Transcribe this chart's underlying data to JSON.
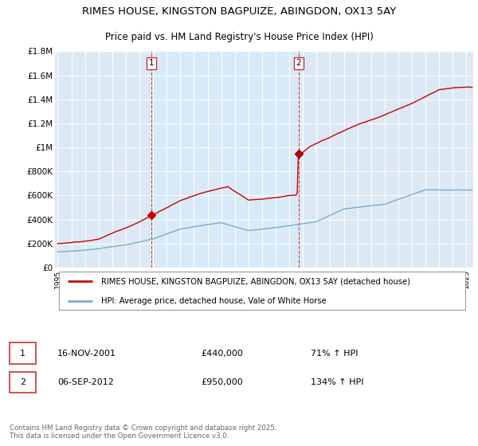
{
  "title1": "RIMES HOUSE, KINGSTON BAGPUIZE, ABINGDON, OX13 5AY",
  "title2": "Price paid vs. HM Land Registry's House Price Index (HPI)",
  "background_color": "#dce9f5",
  "plot_bg_color": "#dce9f5",
  "shaded_color": "#ccddf0",
  "red_color": "#cc0000",
  "blue_color": "#7aabcc",
  "vline_color": "#cc3333",
  "sale1_year": 2001.88,
  "sale1_price": 440000,
  "sale2_year": 2012.68,
  "sale2_price": 950000,
  "ylim": [
    0,
    1800000
  ],
  "xlim_start": 1994.8,
  "xlim_end": 2025.5,
  "legend_label_red": "RIMES HOUSE, KINGSTON BAGPUIZE, ABINGDON, OX13 5AY (detached house)",
  "legend_label_blue": "HPI: Average price, detached house, Vale of White Horse",
  "annotation1_date": "16-NOV-2001",
  "annotation1_price": "£440,000",
  "annotation1_hpi": "71% ↑ HPI",
  "annotation2_date": "06-SEP-2012",
  "annotation2_price": "£950,000",
  "annotation2_hpi": "134% ↑ HPI",
  "footer": "Contains HM Land Registry data © Crown copyright and database right 2025.\nThis data is licensed under the Open Government Licence v3.0.",
  "yticks": [
    0,
    200000,
    400000,
    600000,
    800000,
    1000000,
    1200000,
    1400000,
    1600000,
    1800000
  ],
  "ytick_labels": [
    "£0",
    "£200K",
    "£400K",
    "£600K",
    "£800K",
    "£1M",
    "£1.2M",
    "£1.4M",
    "£1.6M",
    "£1.8M"
  ]
}
